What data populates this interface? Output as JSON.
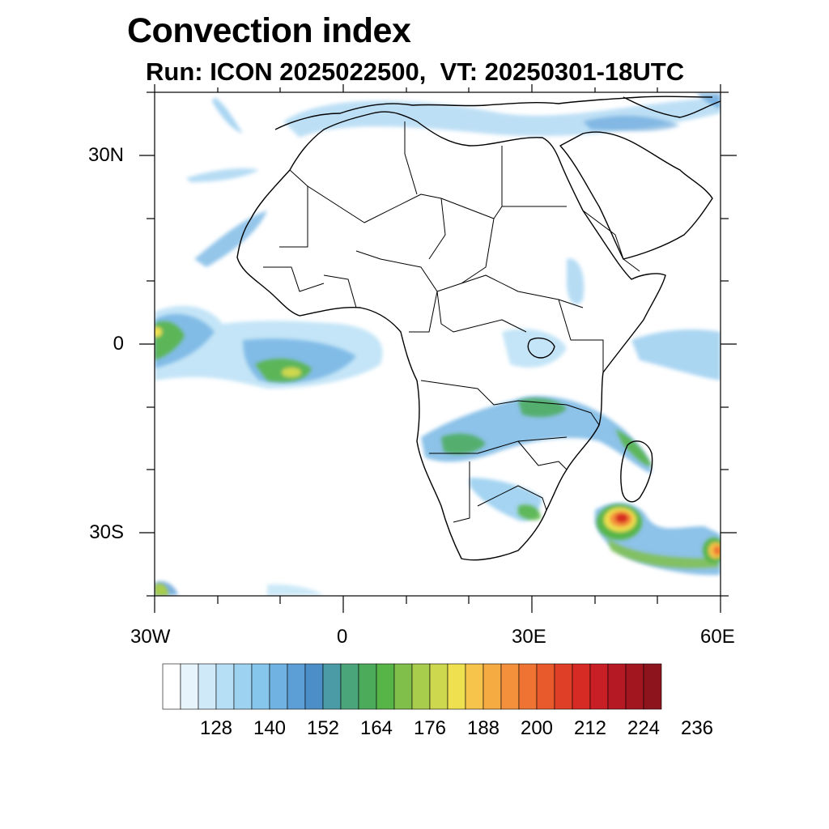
{
  "title": "Convection index",
  "subtitle": "Run: ICON 2025022500,  VT: 20250301-18UTC",
  "map": {
    "lon_range": [
      -30,
      60
    ],
    "lat_range": [
      -40,
      40
    ],
    "lat_tick_labels": [
      "30N",
      "0",
      "30S"
    ],
    "lon_tick_labels": [
      "30W",
      "0",
      "30E",
      "60E"
    ]
  },
  "colorbar": {
    "tick_labels": [
      "128",
      "140",
      "152",
      "164",
      "176",
      "188",
      "200",
      "212",
      "224",
      "236"
    ],
    "colors": [
      "#ffffff",
      "#e8f4fc",
      "#cfe9f8",
      "#b6dff5",
      "#9dd3f1",
      "#86c5ec",
      "#70b3e3",
      "#5c9fd7",
      "#4c8ec8",
      "#4a9ba6",
      "#4aa57a",
      "#4bab5b",
      "#57b548",
      "#80c04a",
      "#a8cc4c",
      "#cdd84e",
      "#efe04f",
      "#f6c44a",
      "#f6aa42",
      "#f4903b",
      "#ef7433",
      "#e8592c",
      "#e03f27",
      "#d62a24",
      "#c81e25",
      "#b51a24",
      "#a21620",
      "#8d141d"
    ]
  },
  "convection_patches": [
    {
      "lon": -27.5,
      "lat": -0.5,
      "level": 13
    },
    {
      "lon": -10.5,
      "lat": -4,
      "level": 16
    },
    {
      "lon": 22,
      "lat": -14,
      "level": 12
    },
    {
      "lon": 30,
      "lat": -10,
      "level": 12
    },
    {
      "lon": 35,
      "lat": -12,
      "level": 10
    },
    {
      "lon": 44.5,
      "lat": -30.5,
      "level": 25
    },
    {
      "lon": 58,
      "lat": -33,
      "level": 20
    },
    {
      "lon": 57,
      "lat": 1,
      "level": 8
    },
    {
      "lon": 28,
      "lat": -27,
      "level": 11
    }
  ]
}
